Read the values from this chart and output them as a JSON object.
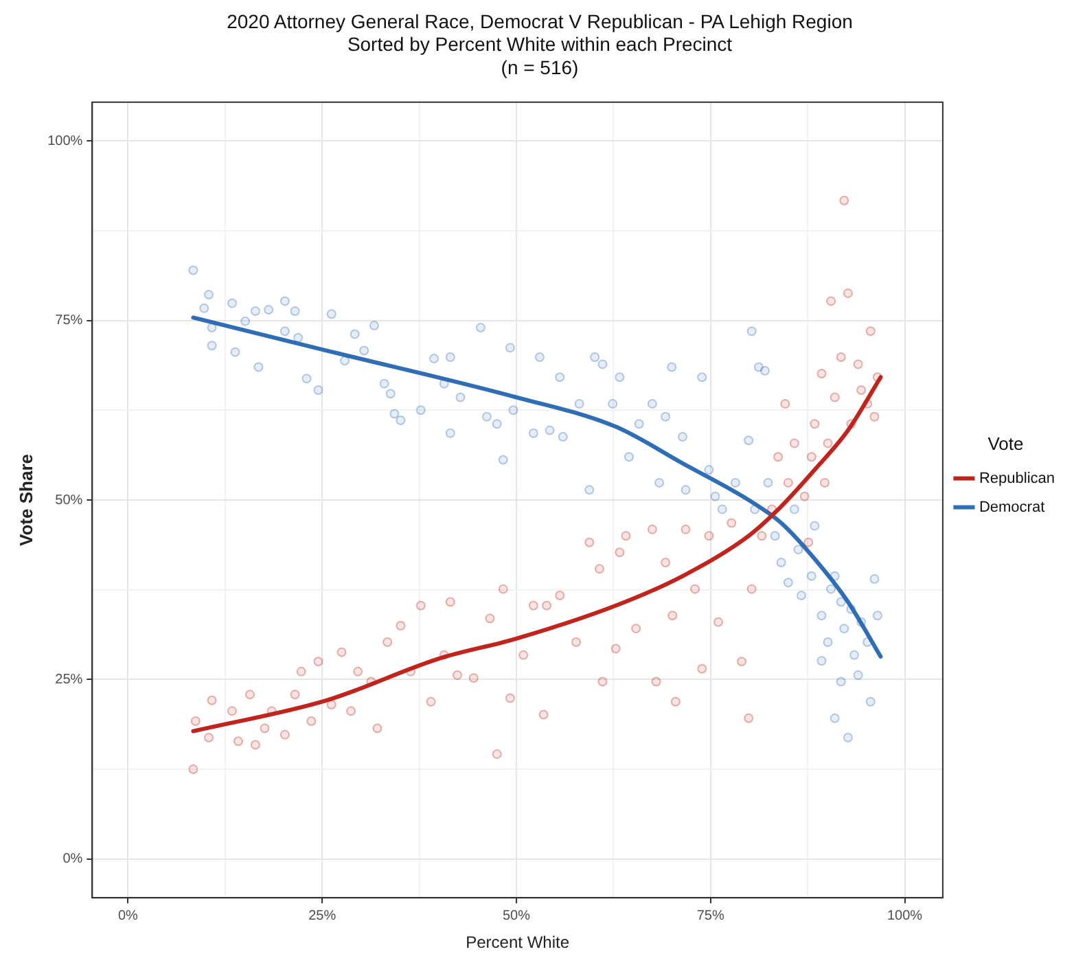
{
  "chart_data": {
    "type": "scatter",
    "title": "2020 Attorney General Race, Democrat V Republican - PA Lehigh Region",
    "subtitle": "Sorted by Percent White within each Precinct\n(n = 516)",
    "xlabel": "Percent White",
    "ylabel": "Vote Share",
    "legend_title": "Vote",
    "legend": "right",
    "grid": true,
    "marker": "circle",
    "xlim": [
      -4.6,
      104.9
    ],
    "ylim": [
      -5.4,
      105.4
    ],
    "xticks": [
      {
        "value": 0,
        "label": "0%"
      },
      {
        "value": 12.5,
        "label": null
      },
      {
        "value": 25,
        "label": "25%"
      },
      {
        "value": 37.5,
        "label": null
      },
      {
        "value": 50,
        "label": "50%"
      },
      {
        "value": 62.5,
        "label": null
      },
      {
        "value": 75,
        "label": "75%"
      },
      {
        "value": 87.5,
        "label": null
      },
      {
        "value": 100,
        "label": "100%"
      }
    ],
    "yticks": [
      {
        "value": 0,
        "label": "0%"
      },
      {
        "value": 12.5,
        "label": null
      },
      {
        "value": 25,
        "label": "25%"
      },
      {
        "value": 37.5,
        "label": null
      },
      {
        "value": 50,
        "label": "50%"
      },
      {
        "value": 62.5,
        "label": null
      },
      {
        "value": 75,
        "label": "75%"
      },
      {
        "value": 87.5,
        "label": null
      },
      {
        "value": 100,
        "label": "100%"
      }
    ],
    "series": [
      {
        "color": "#2f6db5",
        "x": [
          8.4,
          10.4,
          9.8,
          10.8,
          10.8,
          13.4,
          13.8,
          15.1,
          16.4,
          18.1,
          16.8,
          20.2,
          20.2,
          21.5,
          21.9,
          23.0,
          24.5,
          26.2,
          27.9,
          29.2,
          30.4,
          31.7,
          33.0,
          33.8,
          34.3,
          35.1,
          37.7,
          39.4,
          40.7,
          41.5,
          41.5,
          42.8,
          45.4,
          46.2,
          47.5,
          48.3,
          49.2,
          49.6,
          52.2,
          53.0,
          54.3,
          55.6,
          56.0,
          58.1,
          59.4,
          60.1,
          61.1,
          62.4,
          63.3,
          64.5,
          65.8,
          67.5,
          68.4,
          69.2,
          70.0,
          71.4,
          71.8,
          73.9,
          74.8,
          75.6,
          76.5,
          78.2,
          79.9,
          80.3,
          80.7,
          81.2,
          82.0,
          82.4,
          83.3,
          84.1,
          85.0,
          85.8,
          86.3,
          86.7,
          88.0,
          88.4,
          89.3,
          89.3,
          90.1,
          90.5,
          91.0,
          91.8,
          92.2,
          92.7,
          93.1,
          93.5,
          94.0,
          94.4,
          95.2,
          95.6,
          96.1,
          96.5,
          91.0,
          91.8
        ],
        "values": [
          82.0,
          78.6,
          76.7,
          74.0,
          71.5,
          77.4,
          70.6,
          74.9,
          76.3,
          76.5,
          68.5,
          77.7,
          73.5,
          76.3,
          72.6,
          66.9,
          65.3,
          75.9,
          69.4,
          73.1,
          70.8,
          74.3,
          66.2,
          64.8,
          62.0,
          61.1,
          62.5,
          69.7,
          66.2,
          69.9,
          59.3,
          64.3,
          74.0,
          61.6,
          60.6,
          55.6,
          71.2,
          62.5,
          59.3,
          69.9,
          59.7,
          67.1,
          58.8,
          63.4,
          51.4,
          69.9,
          68.9,
          63.4,
          67.1,
          56.0,
          60.6,
          63.4,
          52.4,
          61.6,
          68.5,
          58.8,
          51.4,
          67.1,
          54.2,
          50.5,
          48.7,
          52.4,
          58.3,
          73.5,
          48.7,
          68.5,
          68.0,
          52.4,
          45.0,
          41.3,
          38.5,
          48.7,
          43.1,
          36.7,
          39.4,
          46.4,
          33.9,
          27.6,
          30.2,
          37.6,
          19.6,
          24.7,
          32.1,
          16.9,
          34.8,
          28.4,
          25.6,
          33.0,
          30.2,
          21.9,
          39.0,
          33.9,
          39.4,
          35.8
        ]
      },
      {
        "color": "#c0241c",
        "x": [
          8.4,
          8.7,
          10.8,
          10.4,
          13.4,
          14.2,
          15.7,
          16.4,
          17.6,
          18.5,
          20.2,
          21.5,
          22.3,
          23.6,
          24.5,
          26.2,
          27.5,
          28.7,
          29.6,
          31.3,
          32.1,
          33.4,
          35.1,
          36.4,
          37.7,
          39.0,
          40.7,
          41.5,
          42.4,
          44.5,
          46.6,
          47.5,
          48.3,
          49.2,
          50.9,
          52.2,
          53.5,
          53.9,
          55.6,
          57.7,
          59.4,
          60.7,
          61.1,
          62.8,
          63.3,
          64.1,
          65.4,
          67.5,
          68.0,
          69.2,
          70.1,
          70.5,
          71.8,
          73.0,
          73.9,
          74.8,
          76.0,
          77.7,
          79.0,
          79.9,
          80.3,
          81.6,
          82.9,
          83.7,
          84.6,
          85.0,
          85.8,
          87.1,
          88.0,
          88.4,
          89.3,
          89.7,
          90.5,
          91.0,
          91.8,
          92.2,
          92.7,
          93.1,
          94.0,
          94.4,
          95.2,
          95.6,
          96.1,
          96.5,
          87.6,
          90.1
        ],
        "values": [
          12.5,
          19.2,
          22.1,
          16.9,
          20.6,
          16.4,
          22.9,
          15.9,
          18.2,
          20.6,
          17.3,
          22.9,
          26.1,
          19.2,
          27.5,
          21.5,
          28.8,
          20.6,
          26.1,
          24.7,
          18.2,
          30.2,
          32.5,
          26.1,
          35.3,
          21.9,
          28.4,
          35.8,
          25.6,
          25.2,
          33.5,
          14.6,
          37.6,
          22.4,
          28.4,
          35.3,
          20.1,
          35.3,
          36.7,
          30.2,
          44.1,
          40.4,
          24.7,
          29.3,
          42.7,
          45.0,
          32.1,
          45.9,
          24.7,
          41.3,
          33.9,
          21.9,
          45.9,
          37.6,
          26.5,
          45.0,
          33.0,
          46.8,
          27.5,
          19.6,
          37.6,
          45.0,
          48.7,
          56.0,
          63.4,
          52.4,
          57.9,
          50.5,
          56.0,
          60.6,
          67.6,
          52.4,
          77.7,
          64.3,
          69.9,
          91.7,
          78.8,
          60.6,
          68.9,
          65.3,
          63.4,
          73.5,
          61.6,
          67.1,
          44.1,
          57.9
        ]
      },
      {
        "type": "line",
        "name": "Republican",
        "color": "#c0241c",
        "line_style": "solid",
        "marker": "none",
        "x": [
          8.4,
          25.6,
          40,
          50,
          62.8,
          71.4,
          79.9,
          84.1,
          88.4,
          92.7,
          96.9
        ],
        "values": [
          17.8,
          22.1,
          27.9,
          30.7,
          35.3,
          39.4,
          45.0,
          49.1,
          54.2,
          59.7,
          67.1
        ]
      },
      {
        "type": "line",
        "name": "Democrat",
        "color": "#2f6db5",
        "line_style": "solid",
        "marker": "none",
        "x": [
          8.4,
          25.6,
          50,
          62.8,
          71.4,
          79.9,
          84.1,
          88.4,
          92.7,
          96.9
        ],
        "values": [
          75.4,
          70.8,
          64.3,
          60.2,
          55.1,
          50.0,
          46.8,
          41.8,
          35.8,
          28.2
        ]
      }
    ]
  }
}
